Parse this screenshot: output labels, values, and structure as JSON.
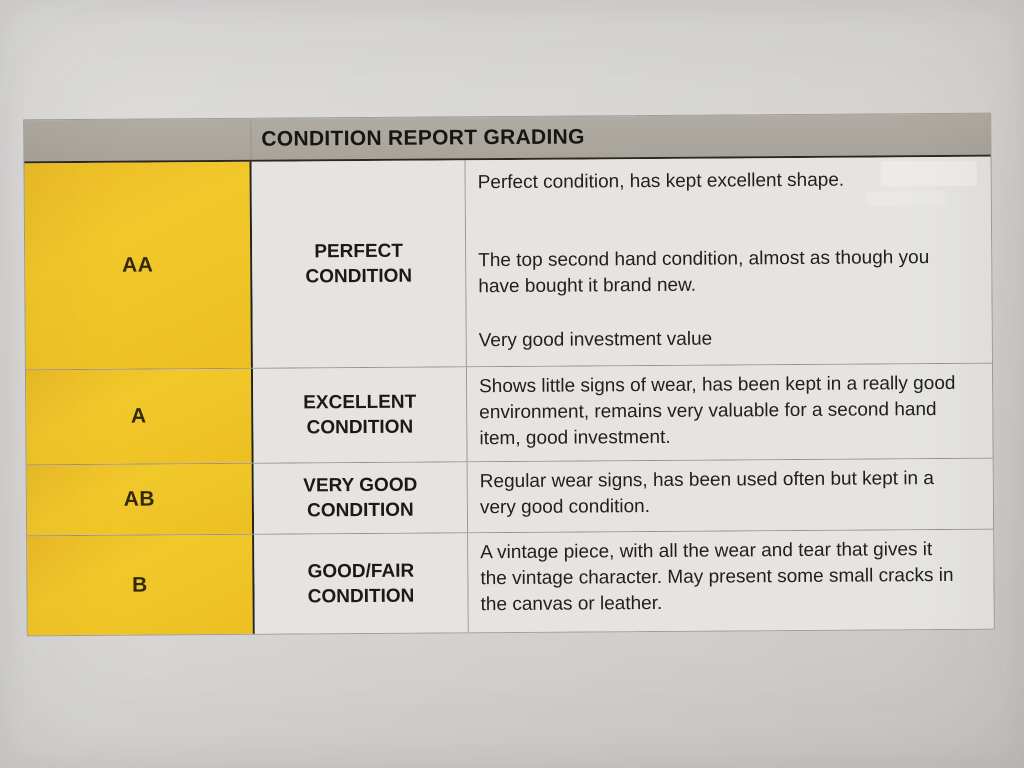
{
  "document": {
    "type": "photographed-printed-table",
    "colors": {
      "paper": "#d7d6d4",
      "header_gray": "#aba69e",
      "grade_yellow": "#efc42a",
      "cell_bg": "#e5e4e1",
      "text": "#1f1e1c"
    }
  },
  "table": {
    "title": "CONDITION REPORT GRADING",
    "columns": [
      "grade",
      "condition-name",
      "description"
    ],
    "rows": [
      {
        "grade": "AA",
        "label": "PERFECT CONDITION",
        "paragraphs": [
          "Perfect condition, has kept excellent shape.",
          "The top second hand condition, almost as though you have bought it brand new.",
          "Very good investment value"
        ]
      },
      {
        "grade": "A",
        "label": "EXCELLENT CONDITION",
        "paragraphs": [
          "Shows little signs of wear, has been kept in a really good environment, remains very valuable for a second hand item, good investment."
        ]
      },
      {
        "grade": "AB",
        "label": "VERY GOOD CONDITION",
        "paragraphs": [
          "Regular wear signs, has been used often but kept in a very good condition."
        ]
      },
      {
        "grade": "B",
        "label": "GOOD/FAIR CONDITION",
        "paragraphs": [
          "A vintage piece, with all the wear and tear that gives it the vintage character. May present some small cracks in the canvas or leather."
        ]
      }
    ]
  }
}
